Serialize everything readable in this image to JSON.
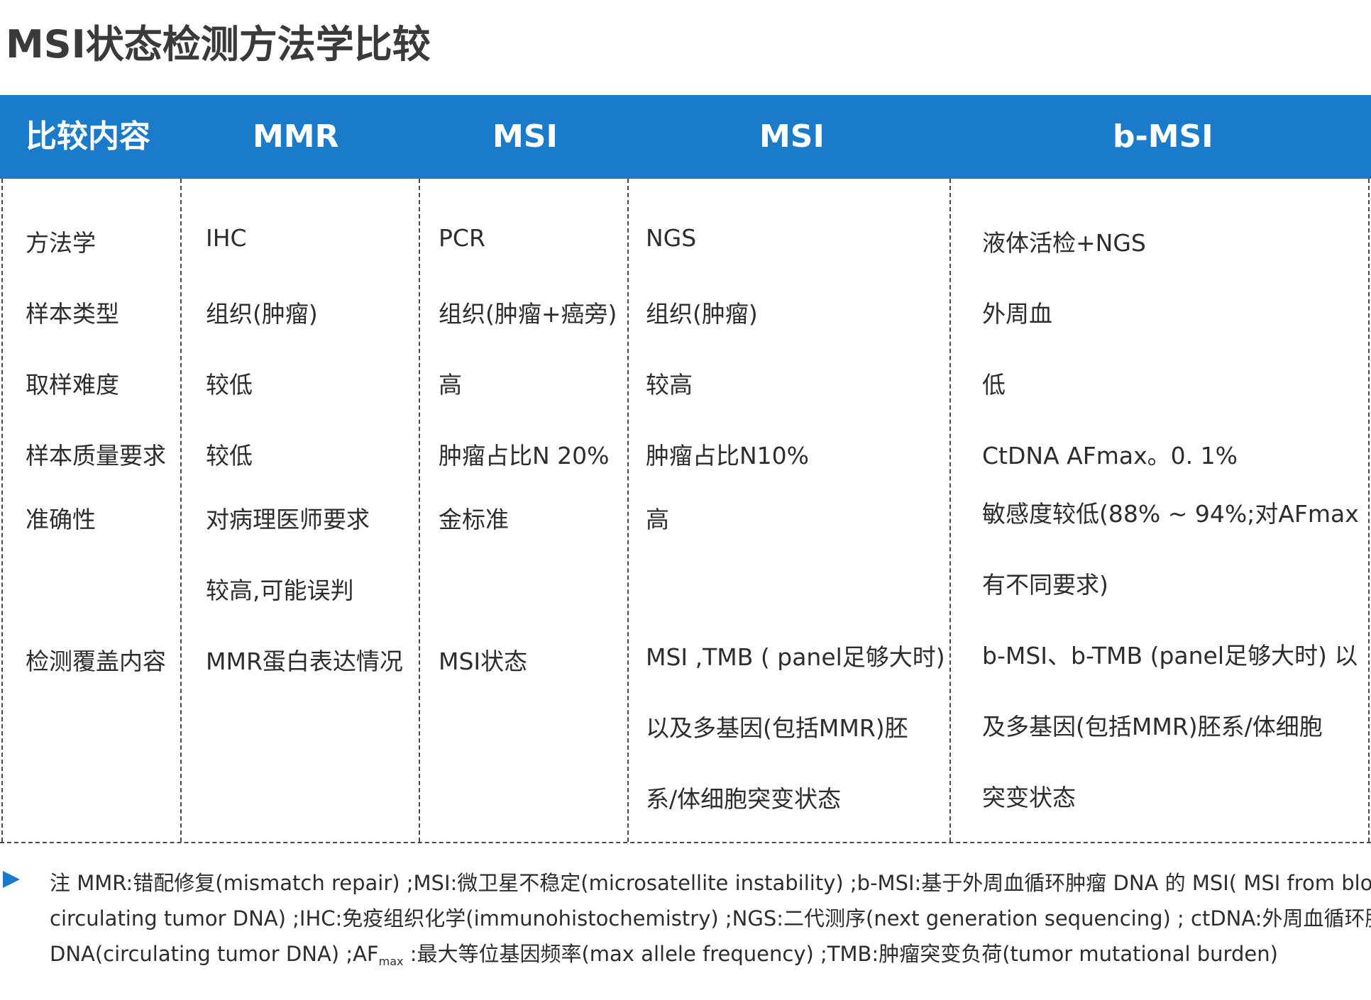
{
  "title": "MSI状态检测方法学比较",
  "header": [
    "比较内容",
    "MMR",
    "MSI",
    "MSI",
    "b-MSI"
  ],
  "rows": {
    "r1": [
      "方法学",
      "IHC",
      "PCR",
      "NGS",
      "液体活检+NGS"
    ],
    "r2": [
      "样本类型",
      "组织(肿瘤)",
      "组织(肿瘤+癌旁)",
      "组织(肿瘤)",
      "外周血"
    ],
    "r3": [
      "取样难度",
      "较低",
      "高",
      "较高",
      "低"
    ],
    "r4": [
      "样本质量要求",
      "较低",
      "肿瘤占比N 20%",
      "肿瘤占比N10%",
      "CtDNA AFmax。0. 1%"
    ],
    "r5": [
      "准确性",
      "对病理医师要求",
      "金标准",
      "高",
      "敏感度较低(88% ~ 94%;对AFmax"
    ],
    "r6": [
      "",
      "较高,可能误判",
      "",
      "",
      "有不同要求)"
    ],
    "r7": [
      "检测覆盖内容",
      "MMR蛋白表达情况",
      "MSI状态",
      "MSI ,TMB ( panel足够大时)",
      "b-MSI、b-TMB (panel足够大时) 以"
    ],
    "r8": [
      "",
      "",
      "",
      "以及多基因(包括MMR)胚",
      "及多基因(包括MMR)胚系/体细胞"
    ],
    "r9": [
      "",
      "",
      "",
      "系/体细胞突变状态",
      "突变状态"
    ]
  },
  "note": {
    "line1": "注 MMR:错配修复(mismatch repair) ;MSI:微卫星不稳定(microsatellite instability) ;b-MSI:基于外周血循环肿瘤 DNA 的 MSI( MSI from blood",
    "line2": "circulating tumor DNA) ;IHC:免疫组织化学(immunohistochemistry) ;NGS:二代测序(next generation sequencing) ; ctDNA:外周血循环肿瘤",
    "line3_pre": "DNA(circulating tumor DNA) ;AF",
    "line3_sub": "max",
    "line3_post": " :最大等位基因频率(max allele frequency) ;TMB:肿瘤突变负荷(tumor mutational burden)"
  }
}
